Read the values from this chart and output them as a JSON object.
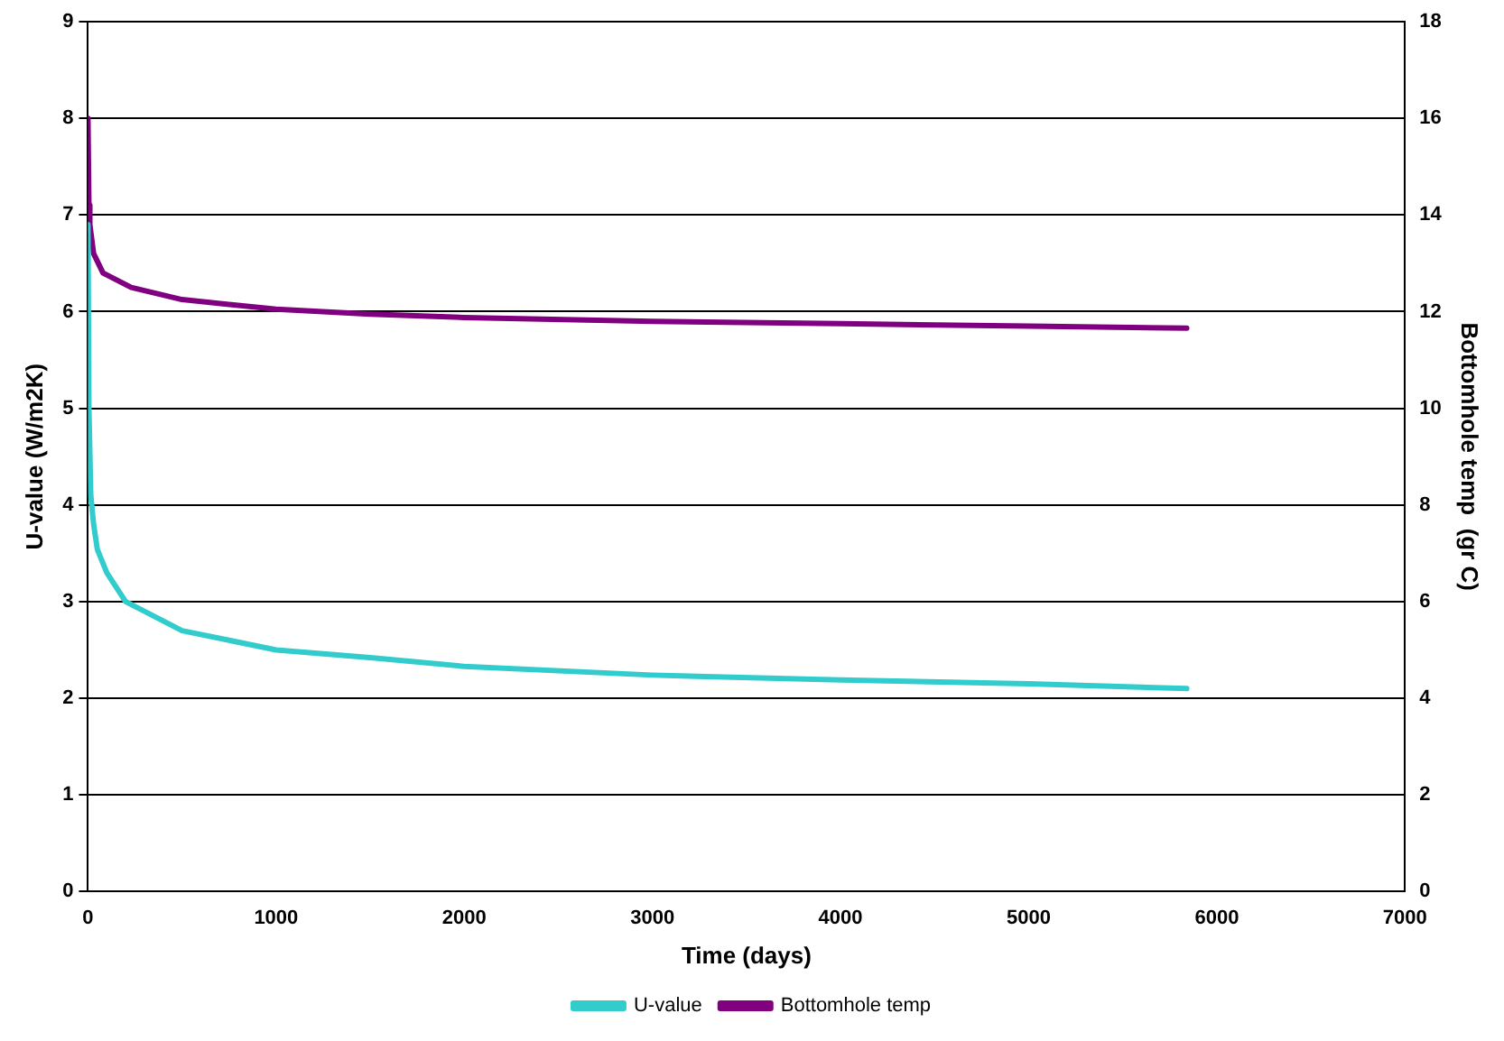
{
  "chart_data": {
    "type": "line",
    "xlabel": "Time (days)",
    "ylabel": "U-value (W/m2K)",
    "y2label": "Bottomhole temp  (gr C)",
    "xlim": [
      0,
      7000
    ],
    "xticks": [
      0,
      1000,
      2000,
      3000,
      4000,
      5000,
      6000,
      7000
    ],
    "ylim": [
      0,
      9
    ],
    "yticks": [
      0,
      1,
      2,
      3,
      4,
      5,
      6,
      7,
      8,
      9
    ],
    "y2lim": [
      0,
      18
    ],
    "y2ticks": [
      0,
      2,
      4,
      6,
      8,
      10,
      12,
      14,
      16,
      18
    ],
    "grid": "y",
    "legend": "bottom",
    "marker": "none",
    "line_style": "solid",
    "series": [
      {
        "name": "U-value",
        "color": "#33cccc",
        "x": [
          0,
          5,
          15,
          30,
          50,
          100,
          200,
          300,
          500,
          750,
          1000,
          1500,
          2000,
          3000,
          4000,
          5000,
          5840
        ],
        "values": [
          6.9,
          5,
          4.1,
          3.8,
          3.54,
          3.3,
          3.0,
          2.9,
          2.7,
          2.6,
          2.5,
          2.42,
          2.33,
          2.24,
          2.19,
          2.15,
          2.1
        ]
      },
      {
        "name": "Bottomhole temp",
        "color": "#800080",
        "axis": "y2",
        "x": [
          0,
          5,
          10,
          30,
          80,
          230,
          500,
          1000,
          1500,
          2000,
          3000,
          4000,
          5000,
          5840
        ],
        "values": [
          16,
          14.2,
          13.8,
          13.2,
          12.8,
          12.5,
          12.25,
          12.05,
          11.95,
          11.88,
          11.8,
          11.75,
          11.7,
          11.66
        ]
      }
    ]
  }
}
